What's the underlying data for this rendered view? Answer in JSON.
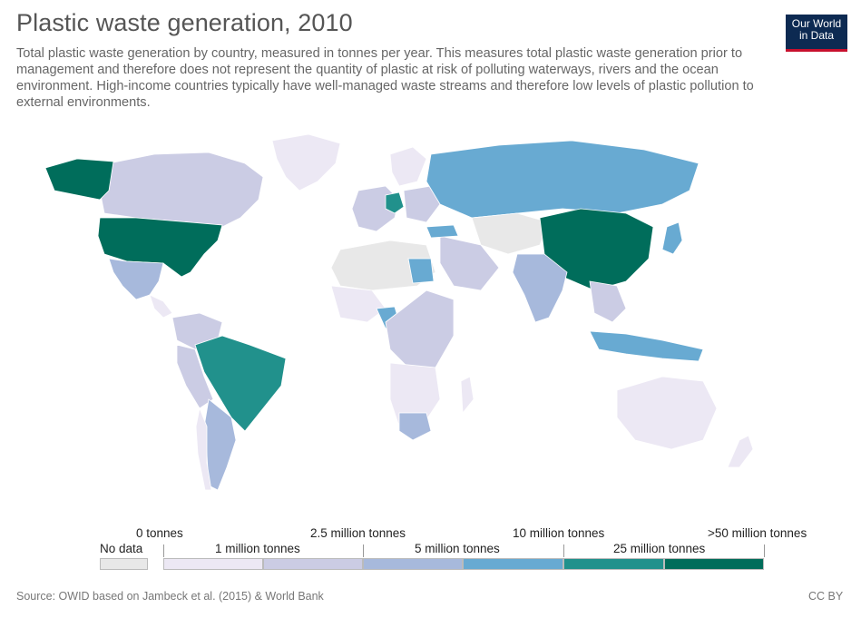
{
  "title": "Plastic waste generation, 2010",
  "subtitle": "Total plastic waste generation by country, measured in tonnes per year. This measures total plastic waste generation prior to management and therefore does not represent the quantity of plastic at risk of polluting waterways, rivers and the ocean environment. High-income countries typically have well-managed waste streams and therefore low levels of plastic pollution to external environments.",
  "logo": {
    "line1": "Our World",
    "line2": "in Data"
  },
  "legend": {
    "no_data_label": "No data",
    "no_data_color": "#e8e8e8",
    "top_labels": [
      "0 tonnes",
      "2.5 million tonnes",
      "10 million tonnes",
      ">50 million tonnes"
    ],
    "bottom_labels": [
      "1 million tonnes",
      "5 million tonnes",
      "25 million tonnes"
    ],
    "bins": [
      {
        "from": "0 tonnes",
        "to": "1 million tonnes",
        "color": "#ece8f4"
      },
      {
        "from": "1 million tonnes",
        "to": "2.5 million tonnes",
        "color": "#cbcce4"
      },
      {
        "from": "2.5 million tonnes",
        "to": "5 million tonnes",
        "color": "#a7b9dc"
      },
      {
        "from": "5 million tonnes",
        "to": "10 million tonnes",
        "color": "#68aad2"
      },
      {
        "from": "10 million tonnes",
        "to": "25 million tonnes",
        "color": "#21918c"
      },
      {
        "from": "25 million tonnes",
        "to": ">50 million tonnes",
        "color": "#006d5b"
      }
    ]
  },
  "regions": [
    {
      "name": "Canada",
      "color": "#cbcce4"
    },
    {
      "name": "Alaska",
      "color": "#006d5b"
    },
    {
      "name": "Greenland",
      "color": "#ece8f4"
    },
    {
      "name": "United States",
      "color": "#006d5b"
    },
    {
      "name": "Mexico",
      "color": "#a7b9dc"
    },
    {
      "name": "Brazil",
      "color": "#21918c"
    },
    {
      "name": "Argentina",
      "color": "#a7b9dc"
    },
    {
      "name": "Russia",
      "color": "#68aad2"
    },
    {
      "name": "China",
      "color": "#006d5b"
    },
    {
      "name": "India",
      "color": "#a7b9dc"
    },
    {
      "name": "Indonesia",
      "color": "#68aad2"
    },
    {
      "name": "Australia",
      "color": "#ece8f4"
    },
    {
      "name": "Nigeria",
      "color": "#68aad2"
    },
    {
      "name": "Egypt",
      "color": "#68aad2"
    },
    {
      "name": "South Africa",
      "color": "#a7b9dc"
    },
    {
      "name": "Germany",
      "color": "#21918c"
    },
    {
      "name": "Japan",
      "color": "#68aad2"
    }
  ],
  "footer": {
    "source": "Source: OWID based on Jambeck et al. (2015) & World Bank",
    "license": "CC BY"
  }
}
